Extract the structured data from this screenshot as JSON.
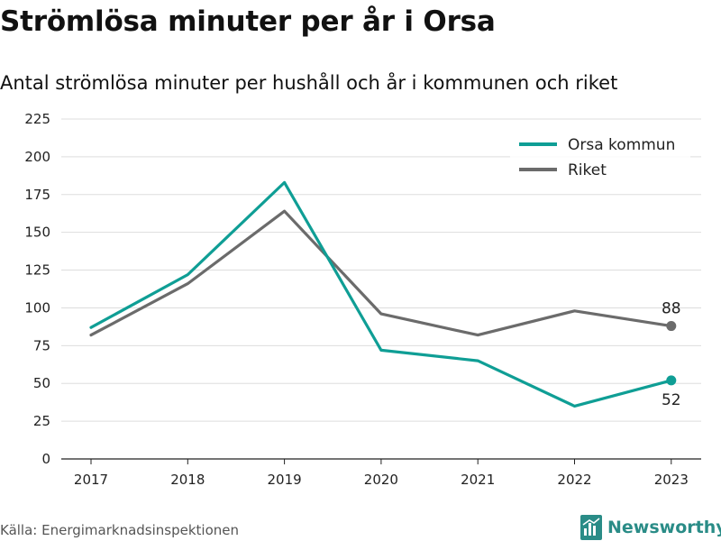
{
  "header": {
    "title": "Strömlösa minuter per år i Orsa",
    "subtitle": "Antal strömlösa minuter per hushåll och år i kommunen och riket"
  },
  "footer": {
    "source": "Källa: Energimarknadsinspektionen",
    "brand": "Newsworthy",
    "brand_icon": "bar-chart-logo-icon",
    "brand_color": "#2a8c87"
  },
  "chart_data": {
    "type": "line",
    "title": "Strömlösa minuter per år i Orsa",
    "subtitle": "Antal strömlösa minuter per hushåll och år i kommunen och riket",
    "xlabel": "",
    "ylabel": "",
    "x": [
      "2017",
      "2018",
      "2019",
      "2020",
      "2021",
      "2022",
      "2023"
    ],
    "ylim": [
      0,
      225
    ],
    "yticks": [
      0,
      25,
      50,
      75,
      100,
      125,
      150,
      175,
      200,
      225
    ],
    "grid": true,
    "legend_position": "top-right",
    "series": [
      {
        "name": "Orsa kommun",
        "color": "#0f9e95",
        "values": [
          87,
          122,
          183,
          72,
          65,
          35,
          52
        ],
        "end_label": "52"
      },
      {
        "name": "Riket",
        "color": "#6b6b6b",
        "values": [
          82,
          116,
          164,
          96,
          82,
          98,
          88
        ],
        "end_label": "88"
      }
    ]
  }
}
